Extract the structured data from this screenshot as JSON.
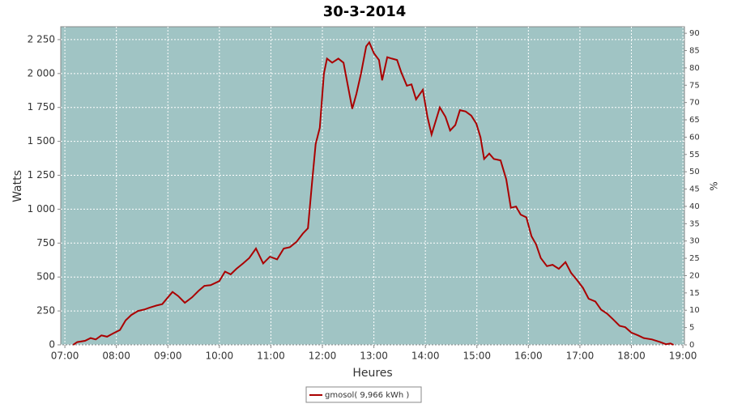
{
  "chart_data": {
    "type": "line",
    "title": "30-3-2014",
    "xlabel": "Heures",
    "ylabel": "Watts",
    "y2label": "%",
    "x": [
      7.16,
      7.24,
      7.39,
      7.5,
      7.6,
      7.71,
      7.82,
      7.94,
      8.07,
      8.18,
      8.29,
      8.42,
      8.54,
      8.65,
      8.78,
      8.89,
      9.0,
      9.09,
      9.2,
      9.33,
      9.47,
      9.6,
      9.71,
      9.83,
      10.0,
      10.11,
      10.22,
      10.33,
      10.46,
      10.58,
      10.71,
      10.85,
      10.98,
      11.12,
      11.25,
      11.37,
      11.5,
      11.62,
      11.72,
      11.8,
      11.87,
      11.95,
      12.03,
      12.09,
      12.19,
      12.31,
      12.41,
      12.5,
      12.58,
      12.66,
      12.75,
      12.85,
      12.91,
      13.0,
      13.1,
      13.16,
      13.26,
      13.35,
      13.45,
      13.53,
      13.64,
      13.73,
      13.82,
      13.95,
      14.04,
      14.12,
      14.2,
      14.28,
      14.39,
      14.48,
      14.58,
      14.67,
      14.78,
      14.89,
      14.99,
      15.07,
      15.14,
      15.24,
      15.33,
      15.46,
      15.57,
      15.66,
      15.76,
      15.85,
      15.96,
      16.06,
      16.15,
      16.24,
      16.36,
      16.47,
      16.59,
      16.72,
      16.83,
      16.94,
      17.06,
      17.17,
      17.3,
      17.41,
      17.53,
      17.64,
      17.77,
      17.88,
      18.0,
      18.13,
      18.24,
      18.4,
      18.56,
      18.67,
      18.76,
      18.82
    ],
    "series": [
      {
        "name": "gmosol( 9,966 kWh )",
        "color": "#aa0000",
        "values": [
          0,
          20,
          30,
          50,
          40,
          70,
          60,
          85,
          110,
          180,
          220,
          250,
          260,
          275,
          290,
          300,
          350,
          390,
          360,
          310,
          350,
          400,
          435,
          440,
          470,
          540,
          520,
          560,
          600,
          640,
          710,
          600,
          650,
          630,
          710,
          720,
          760,
          820,
          860,
          1200,
          1480,
          1600,
          2000,
          2110,
          2080,
          2110,
          2080,
          1900,
          1740,
          1850,
          2000,
          2200,
          2230,
          2150,
          2100,
          1950,
          2120,
          2110,
          2100,
          2010,
          1910,
          1920,
          1810,
          1880,
          1680,
          1550,
          1650,
          1750,
          1680,
          1580,
          1620,
          1730,
          1720,
          1690,
          1630,
          1530,
          1370,
          1410,
          1370,
          1360,
          1220,
          1010,
          1020,
          960,
          940,
          800,
          740,
          640,
          580,
          590,
          560,
          610,
          530,
          480,
          420,
          340,
          320,
          260,
          230,
          190,
          140,
          130,
          90,
          70,
          50,
          40,
          20,
          5,
          10,
          0
        ]
      }
    ],
    "xlim": [
      6.92,
      19.03
    ],
    "xticks": [
      {
        "value": 7,
        "label": "07:00"
      },
      {
        "value": 8,
        "label": "08:00"
      },
      {
        "value": 9,
        "label": "09:00"
      },
      {
        "value": 10,
        "label": "10:00"
      },
      {
        "value": 11,
        "label": "11:00"
      },
      {
        "value": 12,
        "label": "12:00"
      },
      {
        "value": 13,
        "label": "13:00"
      },
      {
        "value": 14,
        "label": "14:00"
      },
      {
        "value": 15,
        "label": "15:00"
      },
      {
        "value": 16,
        "label": "16:00"
      },
      {
        "value": 17,
        "label": "17:00"
      },
      {
        "value": 18,
        "label": "18:00"
      },
      {
        "value": 19,
        "label": "19:00"
      }
    ],
    "ylim": [
      0,
      2345
    ],
    "yticks": [
      0,
      250,
      500,
      750,
      {
        "value": 1000,
        "label": "1 000"
      },
      {
        "value": 1250,
        "label": "1 250"
      },
      {
        "value": 1500,
        "label": "1 500"
      },
      {
        "value": 1750,
        "label": "1 750"
      },
      {
        "value": 2000,
        "label": "2 000"
      },
      {
        "value": 2250,
        "label": "2 250"
      }
    ],
    "y2lim": [
      0,
      91.9
    ],
    "y2ticks": [
      0,
      5,
      10,
      15,
      20,
      25,
      30,
      35,
      40,
      45,
      50,
      55,
      60,
      65,
      70,
      75,
      80,
      85,
      90
    ],
    "grid": true,
    "legend": "bottom",
    "background": "#a0c4c4"
  }
}
